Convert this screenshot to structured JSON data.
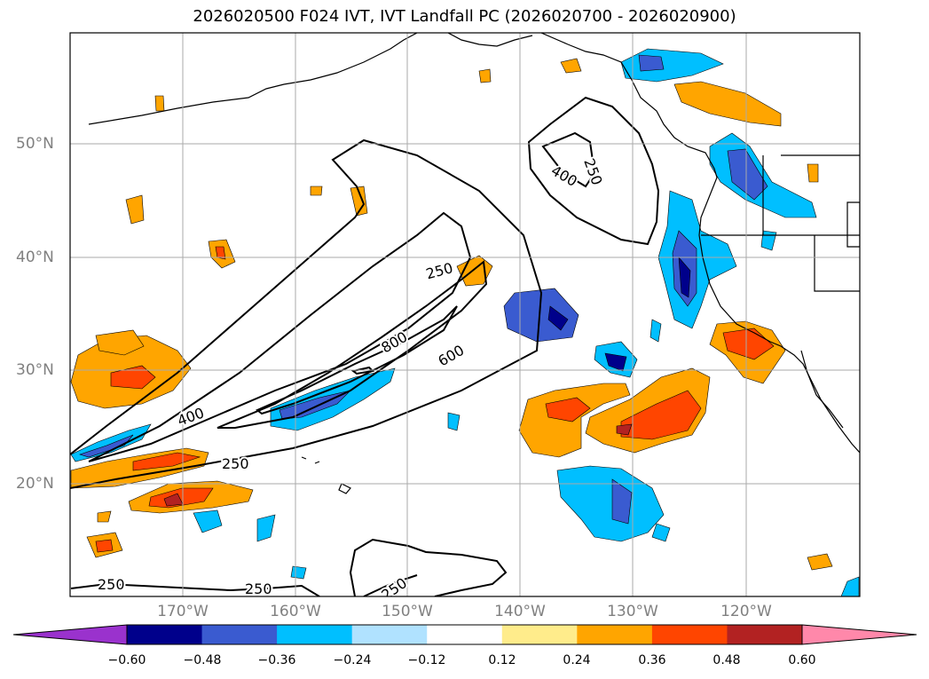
{
  "title": "2026020500 F024 IVT, IVT Landfall PC (2026020700 - 2026020900)",
  "lat_labels": [
    "50°N",
    "40°N",
    "30°N",
    "20°N"
  ],
  "lon_labels": [
    "170°W",
    "160°W",
    "150°W",
    "140°W",
    "130°W",
    "120°W"
  ],
  "contour_labels": [
    "250",
    "400",
    "250",
    "400",
    "600",
    "800",
    "250",
    "250",
    "250",
    "250"
  ],
  "colorbar": {
    "ticks": [
      "−0.60",
      "−0.48",
      "−0.36",
      "−0.24",
      "−0.12",
      "0.12",
      "0.24",
      "0.36",
      "0.48",
      "0.60"
    ],
    "colors": [
      "#9a32cd",
      "#00008b",
      "#3a5bd0",
      "#00bfff",
      "#b0e2ff",
      "#ffffff",
      "#ffec8b",
      "#ffa500",
      "#ff4500",
      "#b22222",
      "#ff88aa"
    ]
  }
}
